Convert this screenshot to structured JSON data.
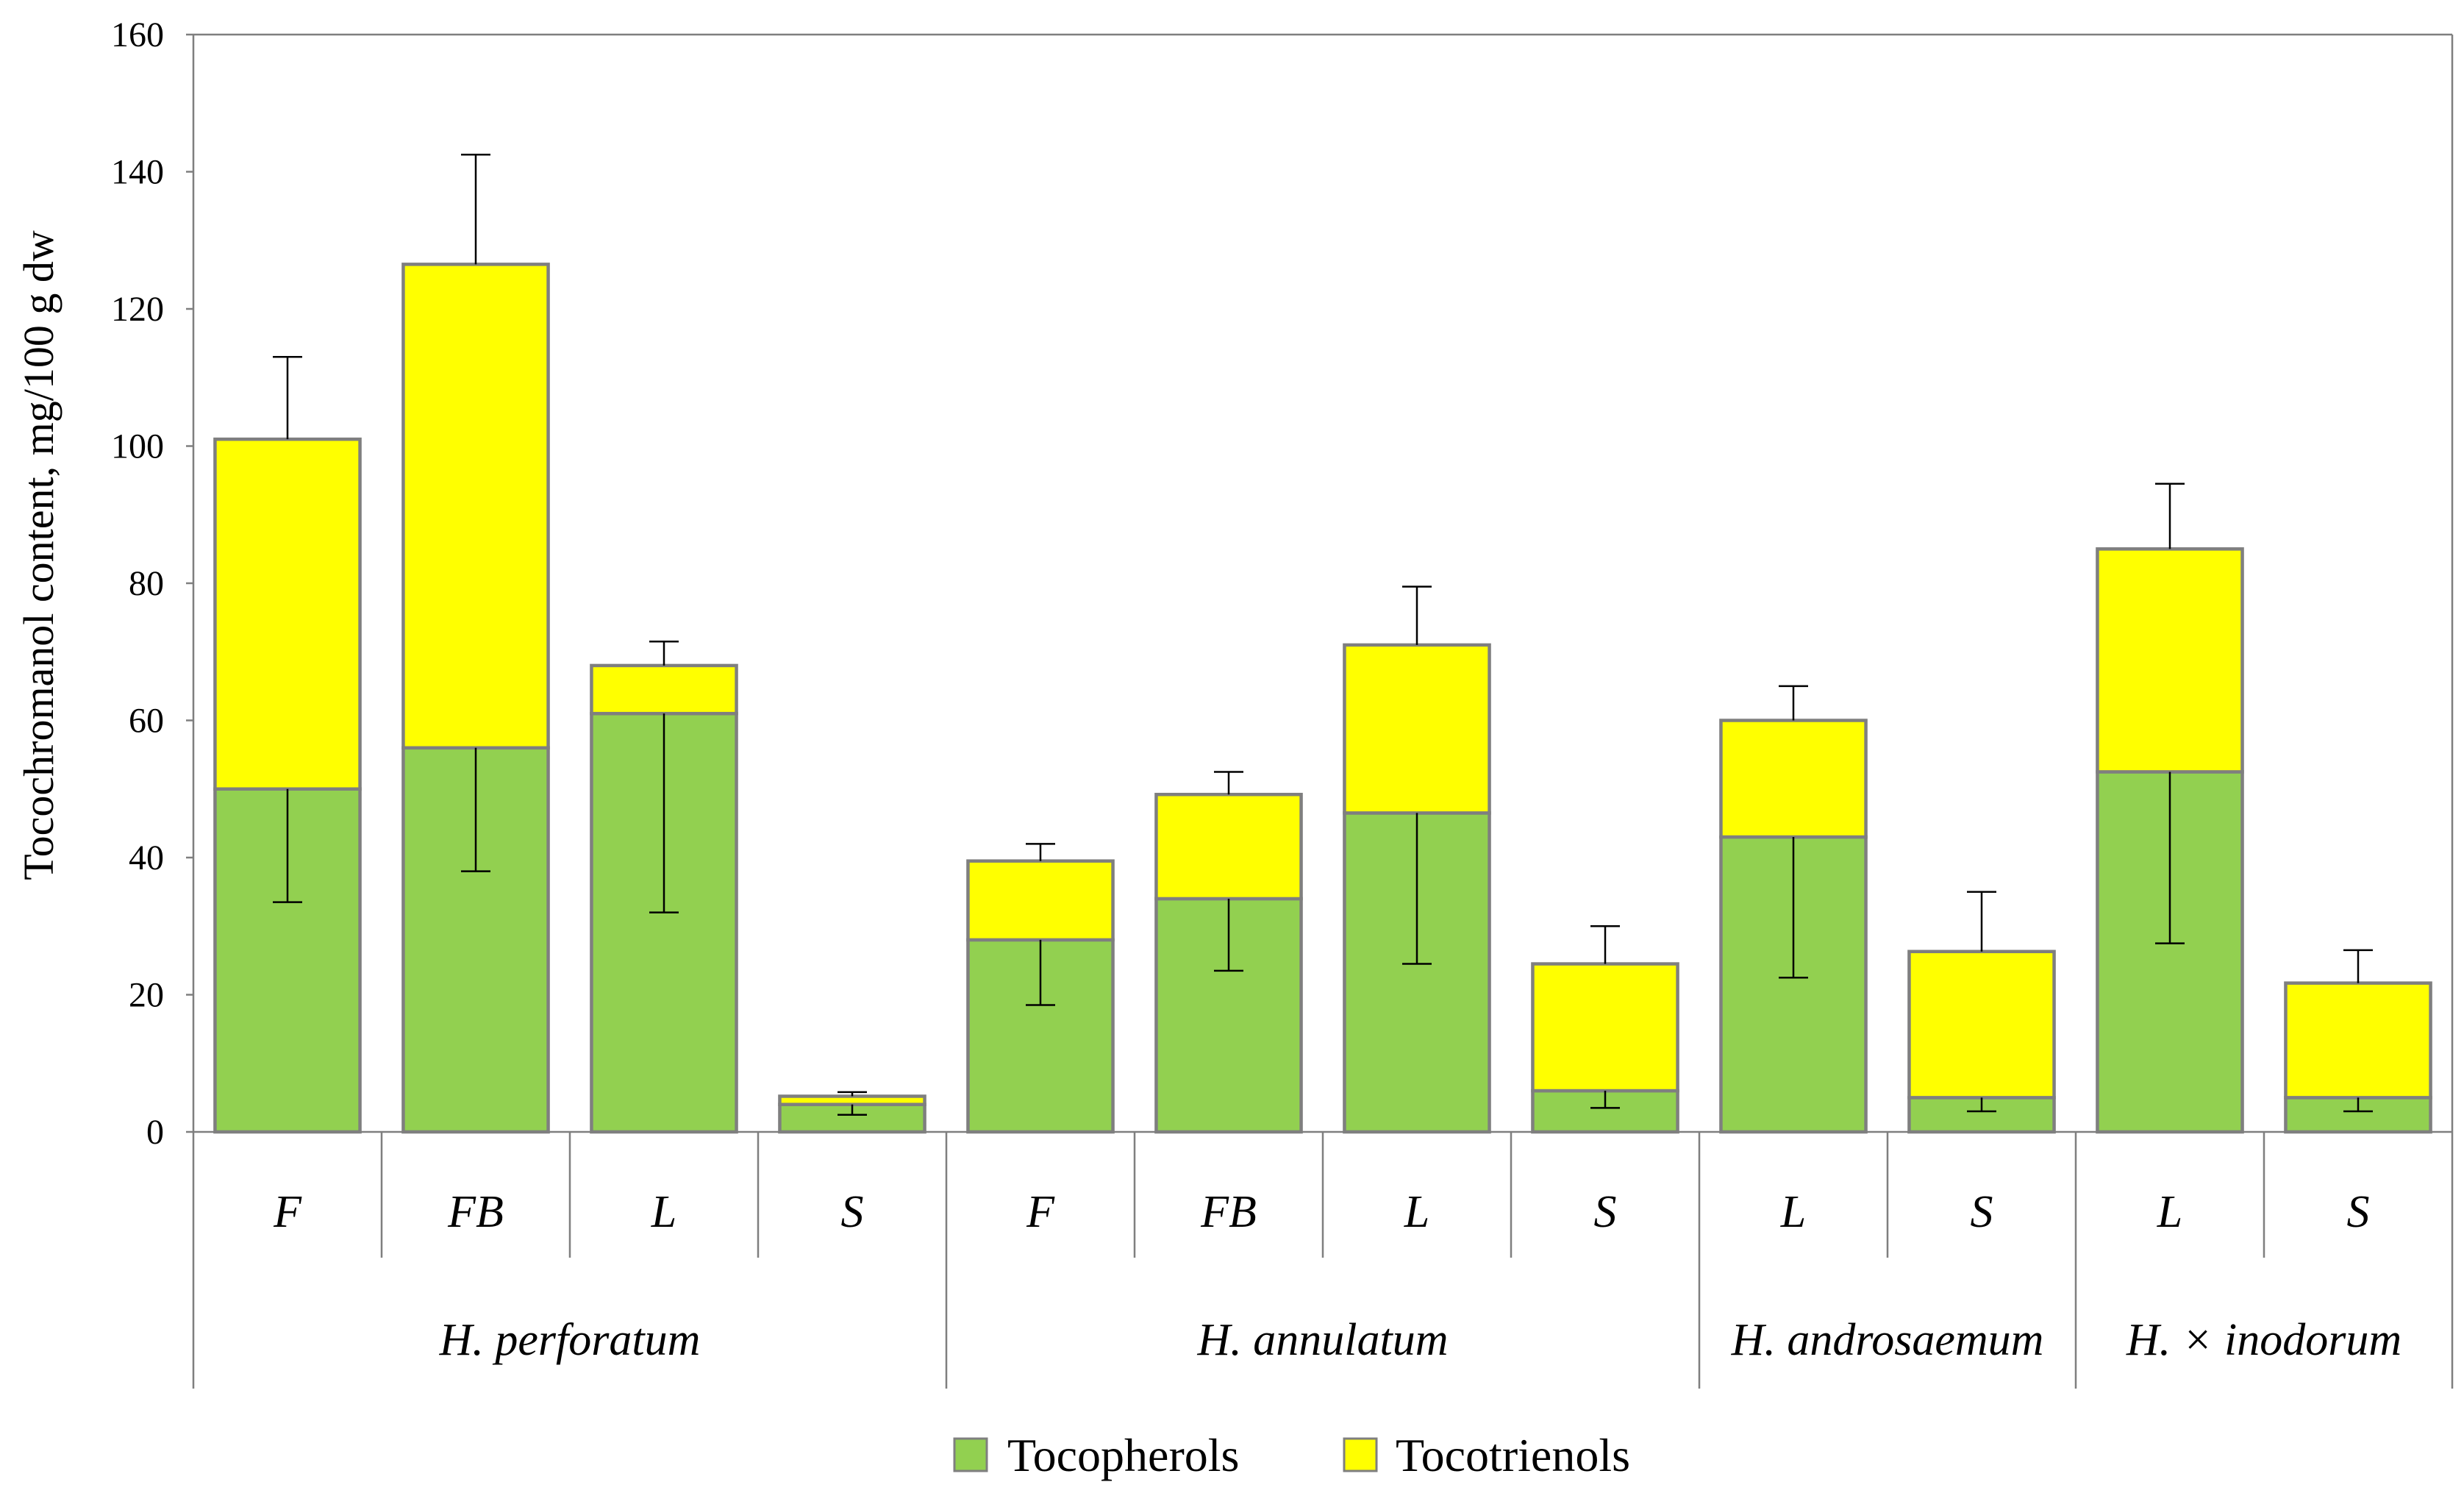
{
  "chart_data": {
    "type": "bar",
    "stacked": true,
    "ylabel": "Tocochromanol content, mg/100 g dw",
    "xlabel": "",
    "ylim": [
      0,
      160
    ],
    "yticks": [
      0,
      20,
      40,
      60,
      80,
      100,
      120,
      140,
      160
    ],
    "grid": false,
    "legend_position": "bottom-center",
    "categories": [
      "F",
      "FB",
      "L",
      "S",
      "F",
      "FB",
      "L",
      "S",
      "L",
      "S",
      "L",
      "S"
    ],
    "groups": [
      {
        "name": "H. perforatum",
        "count": 4
      },
      {
        "name": "H. annulatum",
        "count": 4
      },
      {
        "name": "H. androsaemum",
        "count": 2
      },
      {
        "name": "H. × inodorum",
        "count": 2
      }
    ],
    "series": [
      {
        "name": "Tocopherols",
        "color": "#92d050",
        "values": [
          50,
          56,
          61,
          4,
          28,
          34,
          46.5,
          6,
          43,
          5,
          52.5,
          5
        ],
        "error_low": [
          33.5,
          38,
          32,
          2.5,
          18.5,
          23.5,
          24.5,
          3.5,
          22.5,
          3,
          27.5,
          3
        ]
      },
      {
        "name": "Tocotrienols",
        "color": "#ffff00",
        "values": [
          51,
          70.5,
          7,
          1.2,
          11.5,
          15.2,
          24.5,
          18.5,
          17,
          21.3,
          32.5,
          16.7
        ],
        "error_high": [
          113,
          142.5,
          71.5,
          5.8,
          42,
          52.5,
          79.5,
          30,
          65,
          35,
          94.5,
          26.5
        ]
      }
    ]
  }
}
